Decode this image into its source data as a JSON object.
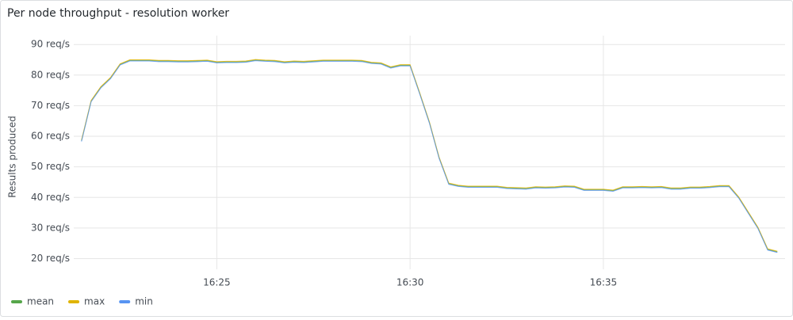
{
  "chart_data": {
    "type": "line",
    "title": "Per node throughput - resolution worker",
    "y_label": "Results produced",
    "x": [
      981.5,
      981.75,
      982,
      982.25,
      982.5,
      982.75,
      983,
      983.25,
      983.5,
      983.75,
      984,
      984.25,
      984.5,
      984.75,
      985,
      985.25,
      985.5,
      985.75,
      986,
      986.25,
      986.5,
      986.75,
      987,
      987.25,
      987.5,
      987.75,
      988,
      988.25,
      988.5,
      988.75,
      989,
      989.25,
      989.5,
      989.75,
      990,
      990.25,
      990.5,
      990.75,
      991,
      991.25,
      991.5,
      991.75,
      992,
      992.25,
      992.5,
      992.75,
      993,
      993.25,
      993.5,
      993.75,
      994,
      994.25,
      994.5,
      994.75,
      995,
      995.25,
      995.5,
      995.75,
      996,
      996.25,
      996.5,
      996.75,
      997,
      997.25,
      997.5,
      997.75,
      998,
      998.25,
      998.5,
      998.75,
      999,
      999.25,
      999.5
    ],
    "series": [
      {
        "name": "mean",
        "color": "#56a64b",
        "values": [
          58.5,
          71.5,
          76,
          79,
          83.5,
          84.8,
          84.8,
          84.8,
          84.6,
          84.6,
          84.5,
          84.5,
          84.6,
          84.7,
          84.2,
          84.3,
          84.3,
          84.4,
          84.9,
          84.7,
          84.6,
          84.2,
          84.4,
          84.3,
          84.5,
          84.7,
          84.7,
          84.7,
          84.7,
          84.6,
          84,
          83.8,
          82.5,
          83.2,
          83.2,
          74,
          64.5,
          53,
          44.5,
          43.8,
          43.5,
          43.5,
          43.5,
          43.5,
          43.1,
          43,
          42.9,
          43.3,
          43.2,
          43.3,
          43.6,
          43.5,
          42.5,
          42.5,
          42.5,
          42.2,
          43.3,
          43.3,
          43.4,
          43.3,
          43.4,
          42.9,
          42.9,
          43.2,
          43.2,
          43.4,
          43.7,
          43.7,
          40,
          35,
          30,
          23,
          22.2
        ]
      },
      {
        "name": "max",
        "color": "#e0b400",
        "values": [
          58.7,
          71.7,
          76.2,
          79.2,
          83.7,
          85,
          85,
          85,
          84.8,
          84.8,
          84.7,
          84.7,
          84.8,
          84.9,
          84.4,
          84.5,
          84.5,
          84.6,
          85.1,
          84.9,
          84.8,
          84.4,
          84.6,
          84.5,
          84.7,
          84.9,
          84.9,
          84.9,
          84.9,
          84.8,
          84.2,
          84,
          82.7,
          83.4,
          83.4,
          74.2,
          64.7,
          53.2,
          44.7,
          44,
          43.7,
          43.7,
          43.7,
          43.7,
          43.3,
          43.2,
          43.1,
          43.5,
          43.4,
          43.5,
          43.8,
          43.7,
          42.7,
          42.7,
          42.7,
          42.4,
          43.5,
          43.5,
          43.6,
          43.5,
          43.6,
          43.1,
          43.1,
          43.4,
          43.4,
          43.6,
          43.9,
          43.9,
          40.2,
          35.2,
          30.2,
          23.2,
          22.4
        ]
      },
      {
        "name": "min",
        "color": "#5794f2",
        "values": [
          58.3,
          71.3,
          75.8,
          78.8,
          83.3,
          84.6,
          84.6,
          84.6,
          84.4,
          84.4,
          84.3,
          84.3,
          84.4,
          84.5,
          84,
          84.1,
          84.1,
          84.2,
          84.7,
          84.5,
          84.4,
          84,
          84.2,
          84.1,
          84.3,
          84.5,
          84.5,
          84.5,
          84.5,
          84.4,
          83.8,
          83.6,
          82.3,
          83,
          83,
          73.8,
          64.3,
          52.8,
          44.3,
          43.6,
          43.3,
          43.3,
          43.3,
          43.3,
          42.9,
          42.8,
          42.7,
          43.1,
          43,
          43.1,
          43.4,
          43.3,
          42.3,
          42.3,
          42.3,
          42,
          43.1,
          43.1,
          43.2,
          43.1,
          43.2,
          42.7,
          42.7,
          43,
          43,
          43.2,
          43.5,
          43.5,
          39.8,
          34.8,
          29.8,
          22.8,
          22
        ]
      }
    ],
    "xlim": [
      981.3,
      999.7
    ],
    "xticks": [
      {
        "value": 985,
        "label": "16:25"
      },
      {
        "value": 990,
        "label": "16:30"
      },
      {
        "value": 995,
        "label": "16:35"
      }
    ],
    "ylim": [
      16.5,
      92.9
    ],
    "yticks": [
      {
        "value": 20,
        "label": "20 req/s"
      },
      {
        "value": 30,
        "label": "30 req/s"
      },
      {
        "value": 40,
        "label": "40 req/s"
      },
      {
        "value": 50,
        "label": "50 req/s"
      },
      {
        "value": 60,
        "label": "60 req/s"
      },
      {
        "value": 70,
        "label": "70 req/s"
      },
      {
        "value": 80,
        "label": "80 req/s"
      },
      {
        "value": 90,
        "label": "90 req/s"
      }
    ],
    "grid": true,
    "legend": "bottom"
  }
}
